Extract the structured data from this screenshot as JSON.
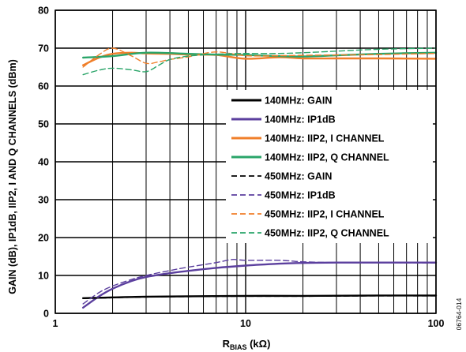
{
  "chart_data": {
    "type": "line",
    "xscale": "log",
    "xlim": [
      1,
      100
    ],
    "ylim": [
      0,
      80
    ],
    "grid": true,
    "legend_placement": "center-right",
    "x_ticks": [
      {
        "value": 1,
        "label": "1"
      },
      {
        "value": 10,
        "label": "10"
      },
      {
        "value": 100,
        "label": "100"
      }
    ],
    "y_ticks": [
      0,
      10,
      20,
      30,
      40,
      50,
      60,
      70,
      80
    ],
    "xlabel": {
      "main": "R",
      "sub": "BIAS",
      "unit": " (kΩ)"
    },
    "ylabel": "GAIN (dB), IP1dB, IIP2,  I AND Q CHANNELS (dBm)",
    "figure_id": "06764-014",
    "series": [
      {
        "name": "140MHz: GAIN",
        "color": "#000000",
        "dash": false,
        "x": [
          1.4,
          2,
          3,
          5,
          10,
          20,
          50,
          100
        ],
        "y": [
          4.0,
          4.2,
          4.4,
          4.5,
          4.6,
          4.6,
          4.7,
          4.7
        ]
      },
      {
        "name": "140MHz: IP1dB",
        "color": "#5b3f9e",
        "dash": false,
        "x": [
          1.4,
          1.7,
          2,
          2.5,
          3,
          4,
          5,
          7,
          10,
          15,
          20,
          30,
          50,
          100
        ],
        "y": [
          1.5,
          4.5,
          6.5,
          8.5,
          9.6,
          10.6,
          11.2,
          12.0,
          12.6,
          13.1,
          13.3,
          13.4,
          13.4,
          13.4
        ]
      },
      {
        "name": "140MHz: IIP2, I CHANNEL",
        "color": "#f07f2a",
        "dash": false,
        "x": [
          1.4,
          1.7,
          2,
          2.5,
          3,
          4,
          5,
          7,
          10,
          15,
          20,
          30,
          50,
          100
        ],
        "y": [
          65.5,
          67.5,
          68.5,
          68.8,
          68.6,
          68.5,
          68.3,
          68.2,
          67.2,
          67.6,
          67.3,
          67.3,
          67.3,
          67.2
        ]
      },
      {
        "name": "140MHz: IIP2, Q CHANNEL",
        "color": "#2aa569",
        "dash": false,
        "x": [
          1.4,
          2,
          3,
          5,
          7,
          10,
          15,
          20,
          30,
          50,
          100
        ],
        "y": [
          67.5,
          67.9,
          68.8,
          68.5,
          68.3,
          68.2,
          67.9,
          67.8,
          68.1,
          68.5,
          68.8
        ]
      },
      {
        "name": "450MHz: GAIN",
        "color": "#000000",
        "dash": true,
        "x": [
          1.4,
          2,
          3,
          5,
          10,
          20,
          50,
          100
        ],
        "y": [
          3.9,
          4.1,
          4.3,
          4.4,
          4.5,
          4.5,
          4.6,
          4.6
        ]
      },
      {
        "name": "450MHz: IP1dB",
        "color": "#5b3f9e",
        "dash": true,
        "x": [
          1.4,
          1.7,
          2,
          2.5,
          3,
          4,
          5,
          7,
          8.5,
          10,
          15,
          20,
          30,
          50,
          100
        ],
        "y": [
          2.5,
          5.5,
          7.2,
          8.9,
          10.0,
          11.3,
          12.2,
          13.4,
          14.2,
          14.0,
          14.0,
          13.6,
          13.4,
          13.4,
          13.3
        ]
      },
      {
        "name": "450MHz: IIP2, I CHANNEL",
        "color": "#f07f2a",
        "dash": true,
        "x": [
          1.4,
          1.7,
          2,
          2.5,
          3,
          3.5,
          4,
          5,
          7,
          10,
          15,
          20,
          30,
          50,
          100
        ],
        "y": [
          65.0,
          68.3,
          70.0,
          68.0,
          66.0,
          66.4,
          67.0,
          67.7,
          69.0,
          68.0,
          68.0,
          68.1,
          68.2,
          68.3,
          68.6
        ]
      },
      {
        "name": "450MHz: IIP2, Q CHANNEL",
        "color": "#2aa569",
        "dash": true,
        "x": [
          1.4,
          1.7,
          2,
          2.5,
          3,
          3.5,
          4,
          5,
          7,
          10,
          15,
          20,
          30,
          50,
          100
        ],
        "y": [
          63.0,
          64.2,
          64.7,
          64.3,
          63.8,
          65.5,
          67.0,
          67.9,
          68.4,
          68.6,
          68.6,
          68.8,
          69.2,
          69.7,
          70.0
        ]
      }
    ]
  }
}
